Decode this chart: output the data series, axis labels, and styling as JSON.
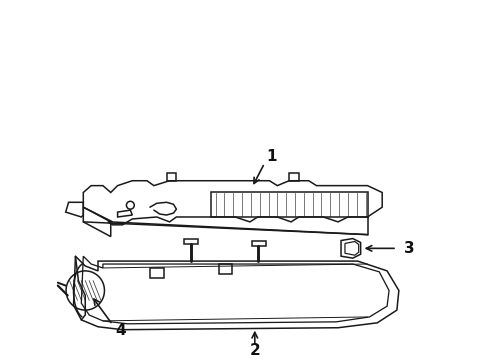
{
  "background_color": "#ffffff",
  "line_color": "#1a1a1a",
  "label_color": "#111111",
  "label_fontsize": 11,
  "lw": 1.1
}
